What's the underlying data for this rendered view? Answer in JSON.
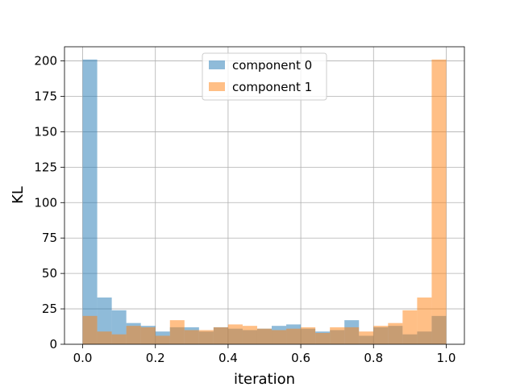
{
  "chart_data": {
    "type": "bar",
    "subtype": "overlapping-histogram",
    "xlabel": "iteration",
    "ylabel": "KL",
    "xlim": [
      -0.05,
      1.05
    ],
    "ylim": [
      0,
      210
    ],
    "xticks": [
      "0.0",
      "0.2",
      "0.4",
      "0.6",
      "0.8",
      "1.0"
    ],
    "yticks": [
      "0",
      "25",
      "50",
      "75",
      "100",
      "125",
      "150",
      "175",
      "200"
    ],
    "grid": true,
    "legend_position": "top-center",
    "bin_edges": [
      0.0,
      0.04,
      0.08,
      0.12,
      0.16,
      0.2,
      0.24,
      0.28,
      0.32,
      0.36,
      0.4,
      0.44,
      0.48,
      0.52,
      0.56,
      0.6,
      0.64,
      0.68,
      0.72,
      0.76,
      0.8,
      0.84,
      0.88,
      0.92,
      0.96,
      1.0
    ],
    "series": [
      {
        "name": "component 0",
        "color": "#1f77b4",
        "opacity": 0.5,
        "values": [
          201,
          33,
          24,
          15,
          13,
          9,
          12,
          12,
          9,
          12,
          11,
          10,
          11,
          13,
          14,
          11,
          9,
          10,
          17,
          6,
          12,
          13,
          7,
          9,
          20
        ]
      },
      {
        "name": "component 1",
        "color": "#ff7f0e",
        "opacity": 0.5,
        "values": [
          20,
          9,
          7,
          13,
          12,
          6,
          17,
          10,
          10,
          12,
          14,
          13,
          11,
          10,
          11,
          12,
          8,
          12,
          12,
          9,
          13,
          15,
          24,
          33,
          201
        ]
      }
    ]
  }
}
